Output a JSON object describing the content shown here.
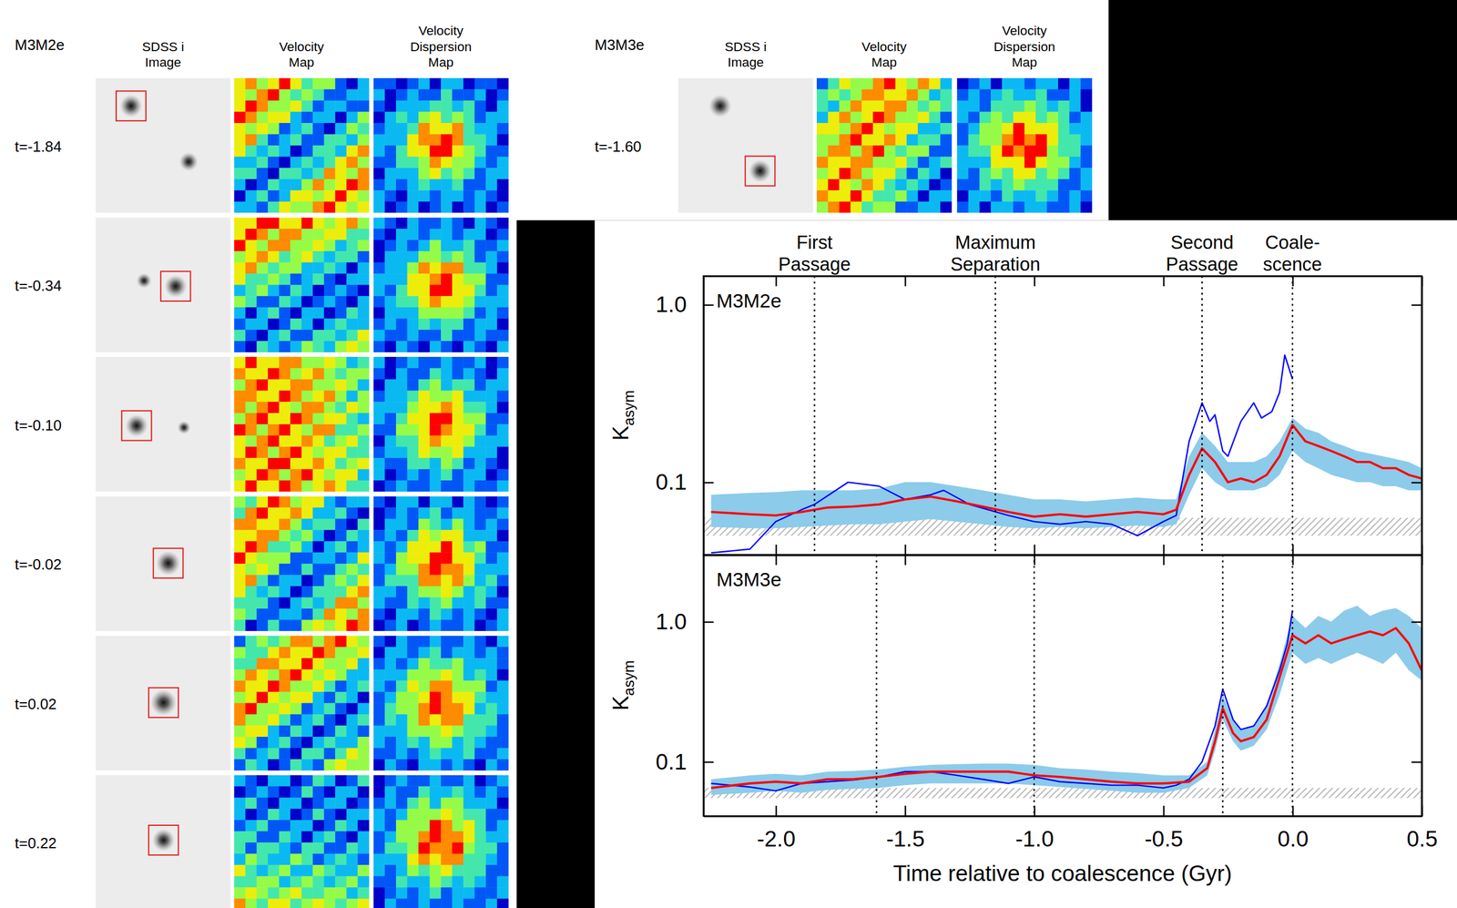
{
  "image_grid": [
    {
      "simulation": "M3M2e",
      "headers": [
        [
          "SDSS i",
          "Image"
        ],
        [
          "Velocity",
          "Map"
        ],
        [
          "Velocity",
          "Dispersion",
          "Map"
        ]
      ],
      "times": [
        "t=-1.84",
        "t=-0.34",
        "t=-0.10",
        "t=-0.02",
        "t=0.02",
        "t=0.22"
      ]
    },
    {
      "simulation": "M3M3e",
      "headers": [
        [
          "SDSS i",
          "Image"
        ],
        [
          "Velocity",
          "Map"
        ],
        [
          "Velocity",
          "Dispersion",
          "Map"
        ]
      ],
      "times": [
        "t=-1.60"
      ]
    }
  ],
  "chart_data": [
    {
      "type": "line",
      "title": "M3M2e",
      "ylabel": {
        "text": "K",
        "subscript": "asym"
      },
      "log": "y",
      "tick_labels": "y",
      "xlim": [
        -2.28,
        0.5
      ],
      "ylim": [
        0.039,
        1.45
      ],
      "xticks": [
        {
          "value": -2,
          "label": "-2.0"
        },
        -1.5,
        {
          "value": -1,
          "label": "-1.0"
        },
        -0.5,
        {
          "value": 0,
          "label": "0.0"
        },
        0.5
      ],
      "yticks": [
        0.1,
        {
          "value": 1,
          "label": "1.0"
        }
      ],
      "baseline": [
        0.05,
        0.063
      ],
      "annotations": [
        {
          "x": -1.85,
          "label": [
            "First",
            "Passage"
          ]
        },
        {
          "x": -1.15,
          "label": [
            "Maximum",
            "Separation"
          ]
        },
        {
          "x": -0.35,
          "label": [
            "Second",
            "Passage"
          ]
        },
        {
          "x": 0.0,
          "label": [
            "Coale-",
            "scence"
          ]
        }
      ],
      "series": [
        {
          "type": "area",
          "color": "#8ccbea",
          "x": [
            -2.25,
            -2.1,
            -2.0,
            -1.9,
            -1.8,
            -1.7,
            -1.6,
            -1.5,
            -1.4,
            -1.3,
            -1.2,
            -1.1,
            -1.0,
            -0.9,
            -0.8,
            -0.7,
            -0.6,
            -0.5,
            -0.45,
            -0.4,
            -0.35,
            -0.3,
            -0.25,
            -0.2,
            -0.15,
            -0.1,
            -0.05,
            0.0,
            0.05,
            0.1,
            0.15,
            0.2,
            0.25,
            0.3,
            0.35,
            0.4,
            0.45,
            0.5
          ],
          "lower": [
            0.056,
            0.055,
            0.055,
            0.056,
            0.057,
            0.058,
            0.058,
            0.06,
            0.062,
            0.06,
            0.058,
            0.056,
            0.055,
            0.056,
            0.055,
            0.056,
            0.057,
            0.056,
            0.058,
            0.085,
            0.12,
            0.1,
            0.09,
            0.09,
            0.09,
            0.095,
            0.11,
            0.15,
            0.13,
            0.12,
            0.11,
            0.105,
            0.1,
            0.1,
            0.095,
            0.095,
            0.09,
            0.09
          ],
          "upper": [
            0.085,
            0.087,
            0.088,
            0.09,
            0.09,
            0.09,
            0.092,
            0.1,
            0.1,
            0.095,
            0.09,
            0.085,
            0.08,
            0.08,
            0.078,
            0.08,
            0.082,
            0.08,
            0.08,
            0.14,
            0.19,
            0.16,
            0.13,
            0.13,
            0.13,
            0.14,
            0.17,
            0.23,
            0.2,
            0.19,
            0.17,
            0.16,
            0.15,
            0.145,
            0.14,
            0.135,
            0.13,
            0.12
          ]
        },
        {
          "type": "line",
          "color": "#0000ff",
          "x": [
            -2.25,
            -2.1,
            -2.0,
            -1.9,
            -1.85,
            -1.72,
            -1.6,
            -1.5,
            -1.4,
            -1.35,
            -1.25,
            -1.1,
            -1.0,
            -0.9,
            -0.8,
            -0.7,
            -0.6,
            -0.5,
            -0.45,
            -0.4,
            -0.35,
            -0.32,
            -0.3,
            -0.27,
            -0.25,
            -0.2,
            -0.15,
            -0.12,
            -0.08,
            -0.05,
            -0.03,
            0.0
          ],
          "values": [
            0.04,
            0.042,
            0.06,
            0.07,
            0.075,
            0.1,
            0.095,
            0.08,
            0.085,
            0.09,
            0.075,
            0.065,
            0.06,
            0.058,
            0.06,
            0.058,
            0.05,
            0.06,
            0.065,
            0.17,
            0.28,
            0.22,
            0.24,
            0.15,
            0.14,
            0.22,
            0.28,
            0.23,
            0.25,
            0.32,
            0.52,
            0.38
          ]
        },
        {
          "type": "line",
          "color": "#ff0000",
          "x": [
            -2.25,
            -2.1,
            -2.0,
            -1.9,
            -1.8,
            -1.7,
            -1.6,
            -1.5,
            -1.4,
            -1.3,
            -1.2,
            -1.1,
            -1.0,
            -0.9,
            -0.8,
            -0.7,
            -0.6,
            -0.5,
            -0.45,
            -0.4,
            -0.35,
            -0.3,
            -0.25,
            -0.2,
            -0.15,
            -0.1,
            -0.05,
            0.0,
            0.05,
            0.1,
            0.15,
            0.2,
            0.25,
            0.3,
            0.35,
            0.4,
            0.45,
            0.5
          ],
          "values": [
            0.068,
            0.066,
            0.065,
            0.068,
            0.072,
            0.073,
            0.075,
            0.08,
            0.083,
            0.078,
            0.073,
            0.068,
            0.064,
            0.066,
            0.064,
            0.066,
            0.068,
            0.066,
            0.07,
            0.11,
            0.155,
            0.13,
            0.1,
            0.105,
            0.1,
            0.11,
            0.14,
            0.21,
            0.17,
            0.16,
            0.15,
            0.14,
            0.13,
            0.13,
            0.12,
            0.12,
            0.11,
            0.105
          ]
        }
      ]
    },
    {
      "type": "line",
      "title": "M3M3e",
      "xlabel": "Time relative to coalescence (Gyr)",
      "ylabel": {
        "text": "K",
        "subscript": "asym"
      },
      "log": "y",
      "xlim": [
        -2.28,
        0.5
      ],
      "ylim": [
        0.041,
        3.0
      ],
      "xticks": [
        {
          "value": -2,
          "label": "-2.0"
        },
        -1.5,
        {
          "value": -1,
          "label": "-1.0"
        },
        -0.5,
        {
          "value": 0,
          "label": "0.0"
        },
        0.5
      ],
      "yticks": [
        0.1,
        {
          "value": 1,
          "label": "1.0"
        }
      ],
      "baseline": [
        0.055,
        0.065
      ],
      "annotations": [
        {
          "x": -1.61
        },
        {
          "x": -1.0
        },
        {
          "x": -0.27
        },
        {
          "x": 0.0
        }
      ],
      "series": [
        {
          "type": "area",
          "color": "#8ccbea",
          "x": [
            -2.25,
            -2.1,
            -2.0,
            -1.9,
            -1.8,
            -1.7,
            -1.6,
            -1.5,
            -1.4,
            -1.3,
            -1.2,
            -1.1,
            -1.0,
            -0.9,
            -0.8,
            -0.7,
            -0.6,
            -0.5,
            -0.4,
            -0.33,
            -0.3,
            -0.27,
            -0.23,
            -0.2,
            -0.15,
            -0.1,
            -0.05,
            0.0,
            0.05,
            0.1,
            0.15,
            0.2,
            0.25,
            0.3,
            0.35,
            0.4,
            0.45,
            0.5
          ],
          "lower": [
            0.058,
            0.06,
            0.062,
            0.06,
            0.063,
            0.064,
            0.065,
            0.068,
            0.07,
            0.07,
            0.07,
            0.07,
            0.068,
            0.066,
            0.064,
            0.062,
            0.06,
            0.06,
            0.065,
            0.08,
            0.12,
            0.2,
            0.14,
            0.12,
            0.13,
            0.17,
            0.3,
            0.6,
            0.5,
            0.55,
            0.5,
            0.55,
            0.6,
            0.55,
            0.5,
            0.6,
            0.45,
            0.38
          ],
          "upper": [
            0.075,
            0.08,
            0.082,
            0.08,
            0.085,
            0.086,
            0.088,
            0.092,
            0.095,
            0.096,
            0.097,
            0.097,
            0.095,
            0.09,
            0.088,
            0.085,
            0.083,
            0.08,
            0.08,
            0.1,
            0.17,
            0.3,
            0.2,
            0.17,
            0.18,
            0.25,
            0.5,
            1.1,
            0.9,
            1.1,
            1.0,
            1.2,
            1.3,
            1.1,
            1.2,
            1.25,
            1.1,
            0.9
          ]
        },
        {
          "type": "line",
          "color": "#0000ff",
          "x": [
            -2.25,
            -2.1,
            -2.0,
            -1.9,
            -1.8,
            -1.7,
            -1.6,
            -1.5,
            -1.4,
            -1.3,
            -1.2,
            -1.1,
            -1.0,
            -0.9,
            -0.8,
            -0.7,
            -0.6,
            -0.5,
            -0.45,
            -0.4,
            -0.35,
            -0.3,
            -0.27,
            -0.23,
            -0.2,
            -0.15,
            -0.1,
            -0.05,
            -0.02,
            0.0
          ],
          "values": [
            0.07,
            0.066,
            0.062,
            0.07,
            0.072,
            0.074,
            0.078,
            0.085,
            0.085,
            0.08,
            0.075,
            0.07,
            0.078,
            0.072,
            0.07,
            0.068,
            0.068,
            0.065,
            0.068,
            0.075,
            0.1,
            0.18,
            0.33,
            0.2,
            0.17,
            0.18,
            0.25,
            0.45,
            0.7,
            1.2
          ]
        },
        {
          "type": "line",
          "color": "#ff0000",
          "x": [
            -2.25,
            -2.1,
            -2.0,
            -1.9,
            -1.8,
            -1.7,
            -1.6,
            -1.5,
            -1.4,
            -1.3,
            -1.2,
            -1.1,
            -1.0,
            -0.9,
            -0.8,
            -0.7,
            -0.6,
            -0.5,
            -0.4,
            -0.33,
            -0.3,
            -0.27,
            -0.23,
            -0.2,
            -0.15,
            -0.1,
            -0.05,
            0.0,
            0.05,
            0.1,
            0.15,
            0.2,
            0.25,
            0.3,
            0.35,
            0.4,
            0.45,
            0.5
          ],
          "values": [
            0.065,
            0.07,
            0.072,
            0.07,
            0.075,
            0.075,
            0.078,
            0.082,
            0.085,
            0.085,
            0.085,
            0.085,
            0.08,
            0.078,
            0.075,
            0.072,
            0.07,
            0.07,
            0.072,
            0.09,
            0.14,
            0.24,
            0.16,
            0.14,
            0.15,
            0.2,
            0.4,
            0.8,
            0.7,
            0.8,
            0.7,
            0.75,
            0.8,
            0.85,
            0.8,
            0.9,
            0.7,
            0.45
          ]
        }
      ]
    }
  ]
}
